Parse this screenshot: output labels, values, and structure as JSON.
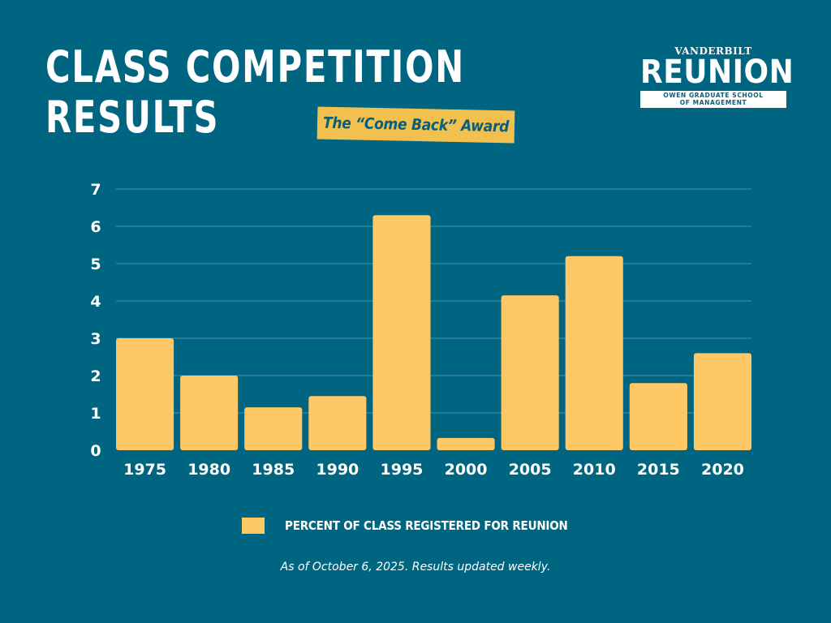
{
  "header": {
    "title_line1": "CLASS COMPETITION",
    "title_line2": "RESULTS",
    "award_label": "The “Come Back” Award"
  },
  "logo": {
    "top": "VANDERBILT",
    "main": "REUNION",
    "sub_line1": "OWEN GRADUATE SCHOOL",
    "sub_line2": "OF MANAGEMENT"
  },
  "colors": {
    "background": "#006580",
    "bar": "#fdc865",
    "award_bg": "#f2c04e",
    "text": "#ffffff",
    "grid": "#4b93a6"
  },
  "chart_data": {
    "type": "bar",
    "categories": [
      "1975",
      "1980",
      "1985",
      "1990",
      "1995",
      "2000",
      "2005",
      "2010",
      "2015",
      "2020"
    ],
    "series": [
      {
        "name": "PERCENT OF CLASS REGISTERED FOR REUNION",
        "values": [
          3.0,
          2.0,
          1.15,
          1.45,
          6.3,
          0.33,
          4.15,
          5.2,
          1.8,
          2.6
        ]
      }
    ],
    "ylim": [
      0,
      7
    ],
    "yticks": [
      "0",
      "1",
      "2",
      "3",
      "4",
      "5",
      "6",
      "7"
    ],
    "grid": true,
    "legend_position": "bottom"
  },
  "footnote": "As of October 6, 2025. Results updated weekly."
}
